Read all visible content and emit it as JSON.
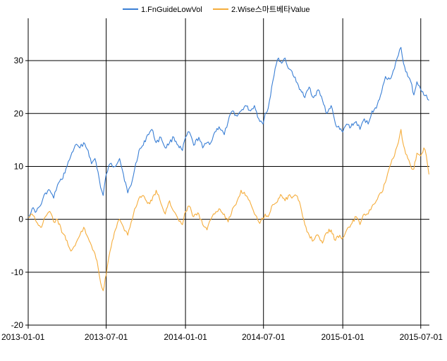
{
  "chart_data": {
    "type": "line",
    "title": "",
    "xlabel": "",
    "ylabel": "",
    "xlim": [
      "2013-01-01",
      "2015-07-21"
    ],
    "ylim": [
      -20,
      38
    ],
    "x_ticks": [
      "2013-01-01",
      "2013-07-01",
      "2014-01-01",
      "2014-07-01",
      "2015-01-01",
      "2015-07-01"
    ],
    "y_ticks": [
      30,
      20,
      10,
      0,
      -10,
      -20
    ],
    "grid": true,
    "legend_position": "top-center",
    "series": [
      {
        "name": "1.FnGuideLowVol",
        "color": "#3a7fd5",
        "points": [
          [
            "2013-01-01",
            0.5
          ],
          [
            "2013-01-10",
            2.0
          ],
          [
            "2013-01-20",
            1.5
          ],
          [
            "2013-02-01",
            3.0
          ],
          [
            "2013-02-10",
            5.0
          ],
          [
            "2013-02-20",
            5.5
          ],
          [
            "2013-03-01",
            4.0
          ],
          [
            "2013-03-10",
            6.5
          ],
          [
            "2013-03-20",
            7.5
          ],
          [
            "2013-04-01",
            10.0
          ],
          [
            "2013-04-10",
            12.0
          ],
          [
            "2013-04-20",
            14.0
          ],
          [
            "2013-05-01",
            13.5
          ],
          [
            "2013-05-10",
            14.5
          ],
          [
            "2013-05-20",
            13.0
          ],
          [
            "2013-05-28",
            10.5
          ],
          [
            "2013-06-05",
            11.5
          ],
          [
            "2013-06-12",
            9.0
          ],
          [
            "2013-06-18",
            6.0
          ],
          [
            "2013-06-24",
            4.5
          ],
          [
            "2013-07-01",
            8.5
          ],
          [
            "2013-07-10",
            10.5
          ],
          [
            "2013-07-20",
            10.0
          ],
          [
            "2013-08-01",
            11.5
          ],
          [
            "2013-08-10",
            8.5
          ],
          [
            "2013-08-20",
            5.0
          ],
          [
            "2013-08-28",
            6.5
          ],
          [
            "2013-09-05",
            9.5
          ],
          [
            "2013-09-15",
            13.0
          ],
          [
            "2013-09-25",
            14.0
          ],
          [
            "2013-10-05",
            16.0
          ],
          [
            "2013-10-15",
            17.0
          ],
          [
            "2013-10-25",
            14.5
          ],
          [
            "2013-11-05",
            15.5
          ],
          [
            "2013-11-15",
            13.5
          ],
          [
            "2013-11-25",
            14.5
          ],
          [
            "2013-12-05",
            15.5
          ],
          [
            "2013-12-15",
            14.0
          ],
          [
            "2013-12-25",
            13.0
          ],
          [
            "2014-01-01",
            15.5
          ],
          [
            "2014-01-10",
            16.5
          ],
          [
            "2014-01-20",
            14.0
          ],
          [
            "2014-02-01",
            15.5
          ],
          [
            "2014-02-10",
            13.5
          ],
          [
            "2014-02-20",
            14.5
          ],
          [
            "2014-03-01",
            14.5
          ],
          [
            "2014-03-10",
            16.5
          ],
          [
            "2014-03-20",
            17.5
          ],
          [
            "2014-04-01",
            16.0
          ],
          [
            "2014-04-10",
            18.5
          ],
          [
            "2014-04-20",
            20.5
          ],
          [
            "2014-05-01",
            19.5
          ],
          [
            "2014-05-10",
            20.5
          ],
          [
            "2014-05-20",
            21.5
          ],
          [
            "2014-06-01",
            20.5
          ],
          [
            "2014-06-10",
            21.5
          ],
          [
            "2014-06-20",
            19.0
          ],
          [
            "2014-06-30",
            18.0
          ],
          [
            "2014-07-05",
            20.0
          ],
          [
            "2014-07-12",
            21.0
          ],
          [
            "2014-07-20",
            25.0
          ],
          [
            "2014-07-28",
            28.5
          ],
          [
            "2014-08-05",
            30.5
          ],
          [
            "2014-08-12",
            29.5
          ],
          [
            "2014-08-20",
            30.5
          ],
          [
            "2014-08-28",
            28.5
          ],
          [
            "2014-09-05",
            28.0
          ],
          [
            "2014-09-15",
            26.0
          ],
          [
            "2014-09-25",
            24.5
          ],
          [
            "2014-10-05",
            23.0
          ],
          [
            "2014-10-15",
            25.0
          ],
          [
            "2014-10-25",
            23.0
          ],
          [
            "2014-11-05",
            24.5
          ],
          [
            "2014-11-15",
            22.5
          ],
          [
            "2014-11-25",
            20.0
          ],
          [
            "2014-12-05",
            21.5
          ],
          [
            "2014-12-15",
            18.0
          ],
          [
            "2014-12-25",
            17.0
          ],
          [
            "2015-01-01",
            16.5
          ],
          [
            "2015-01-10",
            18.0
          ],
          [
            "2015-01-20",
            17.5
          ],
          [
            "2015-02-01",
            18.5
          ],
          [
            "2015-02-10",
            17.0
          ],
          [
            "2015-02-20",
            19.0
          ],
          [
            "2015-03-01",
            18.0
          ],
          [
            "2015-03-10",
            20.5
          ],
          [
            "2015-03-20",
            21.0
          ],
          [
            "2015-04-01",
            24.0
          ],
          [
            "2015-04-10",
            27.0
          ],
          [
            "2015-04-20",
            26.5
          ],
          [
            "2015-05-01",
            28.5
          ],
          [
            "2015-05-10",
            31.0
          ],
          [
            "2015-05-16",
            32.5
          ],
          [
            "2015-05-22",
            29.5
          ],
          [
            "2015-06-01",
            27.0
          ],
          [
            "2015-06-08",
            26.0
          ],
          [
            "2015-06-15",
            23.5
          ],
          [
            "2015-06-22",
            26.0
          ],
          [
            "2015-07-01",
            24.5
          ],
          [
            "2015-07-08",
            23.5
          ],
          [
            "2015-07-14",
            23.5
          ],
          [
            "2015-07-20",
            22.5
          ]
        ]
      },
      {
        "name": "2.Wise스마트베타Value",
        "color": "#f5ad3c",
        "points": [
          [
            "2013-01-01",
            0.5
          ],
          [
            "2013-01-10",
            1.0
          ],
          [
            "2013-01-20",
            -0.5
          ],
          [
            "2013-02-01",
            -1.5
          ],
          [
            "2013-02-10",
            0.5
          ],
          [
            "2013-02-20",
            1.5
          ],
          [
            "2013-03-01",
            -0.5
          ],
          [
            "2013-03-10",
            0.0
          ],
          [
            "2013-03-20",
            -2.5
          ],
          [
            "2013-04-01",
            -4.0
          ],
          [
            "2013-04-10",
            -6.0
          ],
          [
            "2013-04-20",
            -5.0
          ],
          [
            "2013-05-01",
            -3.0
          ],
          [
            "2013-05-10",
            -1.5
          ],
          [
            "2013-05-20",
            -3.5
          ],
          [
            "2013-05-28",
            -5.0
          ],
          [
            "2013-06-05",
            -6.5
          ],
          [
            "2013-06-12",
            -9.0
          ],
          [
            "2013-06-18",
            -12.0
          ],
          [
            "2013-06-24",
            -13.5
          ],
          [
            "2013-07-01",
            -10.5
          ],
          [
            "2013-07-10",
            -6.0
          ],
          [
            "2013-07-20",
            -2.5
          ],
          [
            "2013-08-01",
            0.0
          ],
          [
            "2013-08-10",
            -1.5
          ],
          [
            "2013-08-20",
            -3.0
          ],
          [
            "2013-08-28",
            -0.5
          ],
          [
            "2013-09-05",
            2.0
          ],
          [
            "2013-09-15",
            4.0
          ],
          [
            "2013-09-25",
            4.5
          ],
          [
            "2013-10-05",
            3.0
          ],
          [
            "2013-10-15",
            3.5
          ],
          [
            "2013-10-25",
            5.5
          ],
          [
            "2013-11-05",
            3.0
          ],
          [
            "2013-11-15",
            1.0
          ],
          [
            "2013-11-25",
            3.5
          ],
          [
            "2013-12-05",
            1.5
          ],
          [
            "2013-12-15",
            0.0
          ],
          [
            "2013-12-25",
            -1.0
          ],
          [
            "2014-01-01",
            1.5
          ],
          [
            "2014-01-10",
            2.5
          ],
          [
            "2014-01-20",
            0.5
          ],
          [
            "2014-02-01",
            1.0
          ],
          [
            "2014-02-10",
            -1.0
          ],
          [
            "2014-02-20",
            -2.0
          ],
          [
            "2014-03-01",
            0.0
          ],
          [
            "2014-03-10",
            1.0
          ],
          [
            "2014-03-20",
            2.0
          ],
          [
            "2014-04-01",
            1.0
          ],
          [
            "2014-04-10",
            -0.5
          ],
          [
            "2014-04-20",
            2.0
          ],
          [
            "2014-05-01",
            3.5
          ],
          [
            "2014-05-10",
            5.5
          ],
          [
            "2014-05-20",
            4.5
          ],
          [
            "2014-06-01",
            3.0
          ],
          [
            "2014-06-10",
            1.0
          ],
          [
            "2014-06-20",
            -0.5
          ],
          [
            "2014-06-30",
            0.0
          ],
          [
            "2014-07-05",
            1.0
          ],
          [
            "2014-07-12",
            0.5
          ],
          [
            "2014-07-20",
            2.5
          ],
          [
            "2014-07-28",
            3.0
          ],
          [
            "2014-08-05",
            4.0
          ],
          [
            "2014-08-12",
            4.5
          ],
          [
            "2014-08-20",
            3.5
          ],
          [
            "2014-08-28",
            4.5
          ],
          [
            "2014-09-05",
            4.0
          ],
          [
            "2014-09-15",
            4.5
          ],
          [
            "2014-09-25",
            2.5
          ],
          [
            "2014-10-05",
            -1.0
          ],
          [
            "2014-10-15",
            -3.0
          ],
          [
            "2014-10-25",
            -4.0
          ],
          [
            "2014-11-05",
            -3.0
          ],
          [
            "2014-11-15",
            -4.5
          ],
          [
            "2014-11-25",
            -2.5
          ],
          [
            "2014-12-05",
            -2.0
          ],
          [
            "2014-12-15",
            -4.0
          ],
          [
            "2014-12-25",
            -3.0
          ],
          [
            "2015-01-01",
            -3.5
          ],
          [
            "2015-01-10",
            -2.0
          ],
          [
            "2015-01-20",
            -1.0
          ],
          [
            "2015-02-01",
            0.5
          ],
          [
            "2015-02-10",
            -1.0
          ],
          [
            "2015-02-20",
            1.0
          ],
          [
            "2015-03-01",
            1.0
          ],
          [
            "2015-03-10",
            2.5
          ],
          [
            "2015-03-20",
            3.5
          ],
          [
            "2015-04-01",
            5.0
          ],
          [
            "2015-04-10",
            7.0
          ],
          [
            "2015-04-20",
            10.0
          ],
          [
            "2015-05-01",
            12.0
          ],
          [
            "2015-05-10",
            14.5
          ],
          [
            "2015-05-16",
            17.0
          ],
          [
            "2015-05-22",
            14.0
          ],
          [
            "2015-06-01",
            11.5
          ],
          [
            "2015-06-08",
            10.0
          ],
          [
            "2015-06-15",
            9.5
          ],
          [
            "2015-06-22",
            12.5
          ],
          [
            "2015-07-01",
            12.0
          ],
          [
            "2015-07-08",
            13.5
          ],
          [
            "2015-07-14",
            12.0
          ],
          [
            "2015-07-20",
            8.5
          ]
        ]
      }
    ]
  }
}
